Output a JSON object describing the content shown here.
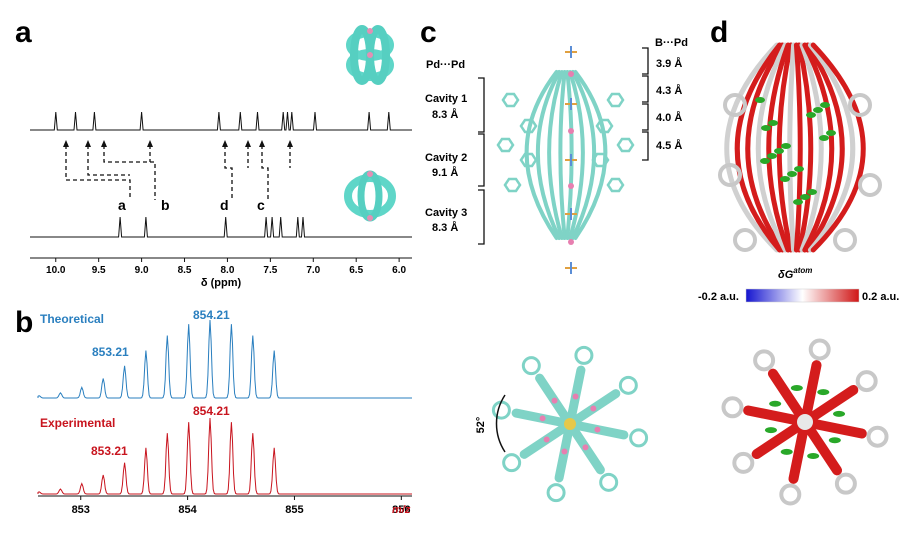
{
  "panels": {
    "a": {
      "letter": "a",
      "axis_label": "δ (ppm)",
      "ticks": [
        "10.0",
        "9.5",
        "9.0",
        "8.5",
        "8.0",
        "7.5",
        "7.0",
        "6.5",
        "6.0"
      ],
      "peak_labels": [
        "a",
        "b",
        "d",
        "c"
      ]
    },
    "b": {
      "letter": "b",
      "theoretical_label": "Theoretical",
      "experimental_label": "Experimental",
      "peak_labels": {
        "theo_top": "854.21",
        "theo_side": "853.21",
        "exp_top": "854.21",
        "exp_side": "853.21"
      },
      "ticks": [
        "853",
        "854",
        "855",
        "856"
      ],
      "axis_unit": "m/z",
      "colors": {
        "theoretical": "#2a7fbf",
        "experimental": "#c8141e"
      }
    },
    "c": {
      "letter": "c",
      "pd_pd_label": "Pd···Pd",
      "b_pd_label": "B···Pd",
      "cavities": [
        {
          "name": "Cavity 1",
          "size": "8.3 Å"
        },
        {
          "name": "Cavity 2",
          "size": "9.1 Å"
        },
        {
          "name": "Cavity 3",
          "size": "8.3 Å"
        }
      ],
      "distances": [
        "3.9 Å",
        "4.3 Å",
        "4.0 Å",
        "4.5 Å"
      ],
      "angle": "52°"
    },
    "d": {
      "letter": "d",
      "scale_title": "δG",
      "scale_sup": "atom",
      "scale_min": "-0.2 a.u.",
      "scale_max": "0.2 a.u."
    }
  },
  "chart_data": [
    {
      "type": "line",
      "title": "",
      "xlabel": "δ (ppm)",
      "x_reversed": true,
      "xlim": [
        10.3,
        5.85
      ],
      "series": [
        {
          "peaks_ppm": [
            10.0,
            9.77,
            9.55,
            9.0,
            8.1,
            7.85,
            7.65,
            7.35,
            7.3,
            7.25,
            6.98,
            6.35,
            6.12
          ]
        },
        {
          "peaks_ppm": [
            9.25,
            8.95,
            8.02,
            7.55,
            7.48,
            7.38,
            7.18,
            7.12
          ]
        }
      ]
    },
    {
      "type": "line",
      "xlabel": "m/z",
      "xlim": [
        852.6,
        856.1
      ],
      "series": [
        {
          "name": "Theoretical",
          "labeled_peaks": [
            853.21,
            854.21
          ]
        },
        {
          "name": "Experimental",
          "labeled_peaks": [
            853.21,
            854.21
          ]
        }
      ]
    }
  ]
}
